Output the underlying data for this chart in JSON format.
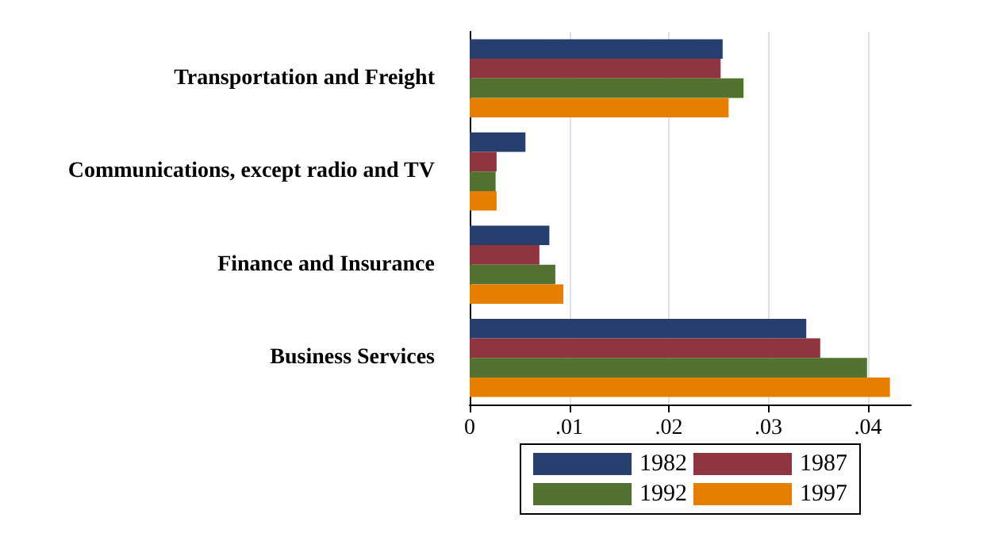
{
  "chart_data": {
    "type": "bar",
    "orientation": "horizontal",
    "categories": [
      "Transportation and Freight",
      "Communications, except radio and TV",
      "Finance and Insurance",
      "Business Services"
    ],
    "series": [
      {
        "name": "1982",
        "color": "#263f6e",
        "values": [
          0.0254,
          0.0056,
          0.008,
          0.0338
        ]
      },
      {
        "name": "1987",
        "color": "#8e3540",
        "values": [
          0.0252,
          0.0027,
          0.007,
          0.0352
        ]
      },
      {
        "name": "1992",
        "color": "#52722f",
        "values": [
          0.0275,
          0.0026,
          0.0086,
          0.0399
        ]
      },
      {
        "name": "1997",
        "color": "#e67e00",
        "values": [
          0.026,
          0.0027,
          0.0094,
          0.0422
        ]
      }
    ],
    "xlim": [
      0,
      0.0443
    ],
    "xticks": [
      0,
      {
        "value": 0.01,
        "label": ".01"
      },
      {
        "value": 0.02,
        "label": ".02"
      },
      {
        "value": 0.03,
        "label": ".03"
      },
      {
        "value": 0.04,
        "label": ".04"
      }
    ],
    "grid": "x",
    "legend": "bottom"
  }
}
